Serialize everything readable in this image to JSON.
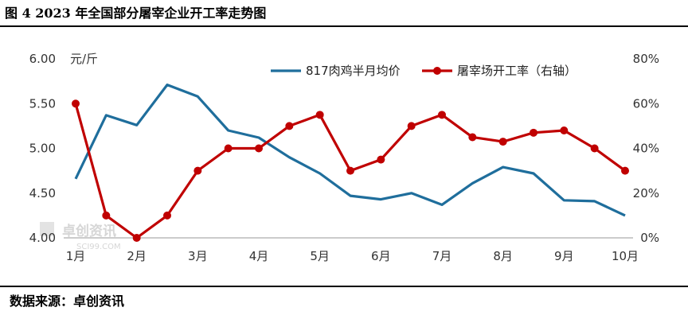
{
  "figure": {
    "title": "图 4 2023 年全国部分屠宰企业开工率走势图",
    "source": "数据来源：卓创资讯"
  },
  "watermark": {
    "text": "卓创资讯",
    "sub": "SCI99.COM"
  },
  "colors": {
    "price": "#1f6e9c",
    "rate": "#c00000",
    "axis": "#999999"
  },
  "chart_data": {
    "type": "line",
    "x_tick_labels": [
      "1月",
      "2月",
      "3月",
      "4月",
      "5月",
      "6月",
      "7月",
      "8月",
      "9月",
      "10月"
    ],
    "y_left": {
      "unit": "元/斤",
      "ylim": [
        4.0,
        6.0
      ],
      "ticks": [
        "4.00",
        "4.50",
        "5.00",
        "5.50",
        "6.00"
      ],
      "tick_values": [
        4.0,
        4.5,
        5.0,
        5.5,
        6.0
      ]
    },
    "y_right": {
      "ylim": [
        0,
        80
      ],
      "ticks": [
        "0%",
        "20%",
        "40%",
        "60%",
        "80%"
      ],
      "tick_values": [
        0,
        20,
        40,
        60,
        80
      ]
    },
    "grid": false,
    "legend_position": "top-right",
    "series": [
      {
        "name": "817肉鸡半月均价",
        "axis": "left",
        "x": [
          1,
          1.5,
          2,
          2.5,
          3,
          3.5,
          4,
          4.5,
          5,
          5.5,
          6,
          6.5,
          7,
          7.5,
          8,
          8.5,
          9,
          9.5,
          10
        ],
        "values": [
          4.66,
          5.37,
          5.26,
          5.71,
          5.58,
          5.2,
          5.12,
          4.9,
          4.72,
          4.47,
          4.43,
          4.5,
          4.37,
          4.61,
          4.79,
          4.72,
          4.42,
          4.41,
          4.25
        ]
      },
      {
        "name": "屠宰场开工率（右轴）",
        "axis": "right",
        "x": [
          1,
          1.5,
          2,
          2.5,
          3,
          3.5,
          4,
          4.5,
          5,
          5.5,
          6,
          6.5,
          7,
          7.5,
          8,
          8.5,
          9,
          9.5,
          10
        ],
        "values": [
          60,
          10,
          0,
          10,
          30,
          40,
          40,
          50,
          55,
          30,
          35,
          50,
          55,
          45,
          43,
          47,
          48,
          40,
          30
        ]
      }
    ]
  }
}
